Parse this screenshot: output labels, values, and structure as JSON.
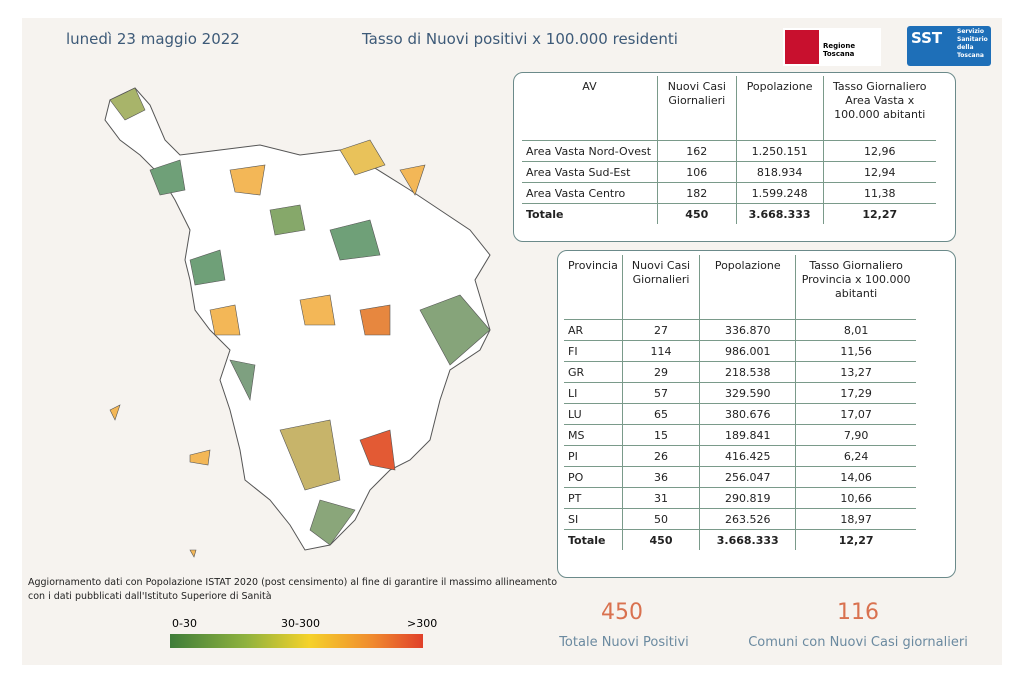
{
  "header": {
    "date": "lunedì 23 maggio 2022",
    "title": "Tasso di Nuovi positivi x 100.000 residenti"
  },
  "logos": {
    "regione": "Regione Toscana",
    "sst": "SST",
    "sst_name": [
      "Servizio",
      "Sanitario",
      "della",
      "Toscana"
    ]
  },
  "table_av": {
    "headers": [
      "AV",
      "Nuovi Casi Giornalieri",
      "Popolazione",
      "Tasso Giornaliero Area Vasta x 100.000 abitanti"
    ],
    "rows": [
      [
        "Area Vasta Nord-Ovest",
        "162",
        "1.250.151",
        "12,96"
      ],
      [
        "Area Vasta Sud-Est",
        "106",
        "818.934",
        "12,94"
      ],
      [
        "Area Vasta Centro",
        "182",
        "1.599.248",
        "11,38"
      ]
    ],
    "total": [
      "Totale",
      "450",
      "3.668.333",
      "12,27"
    ]
  },
  "table_prov": {
    "headers": [
      "Provincia",
      "Nuovi Casi Giornalieri",
      "Popolazione",
      "Tasso Giornaliero Provincia x 100.000 abitanti"
    ],
    "rows": [
      [
        "AR",
        "27",
        "336.870",
        "8,01"
      ],
      [
        "FI",
        "114",
        "986.001",
        "11,56"
      ],
      [
        "GR",
        "29",
        "218.538",
        "13,27"
      ],
      [
        "LI",
        "57",
        "329.590",
        "17,29"
      ],
      [
        "LU",
        "65",
        "380.676",
        "17,07"
      ],
      [
        "MS",
        "15",
        "189.841",
        "7,90"
      ],
      [
        "PI",
        "26",
        "416.425",
        "6,24"
      ],
      [
        "PO",
        "36",
        "256.047",
        "14,06"
      ],
      [
        "PT",
        "31",
        "290.819",
        "10,66"
      ],
      [
        "SI",
        "50",
        "263.526",
        "18,97"
      ]
    ],
    "total": [
      "Totale",
      "450",
      "3.668.333",
      "12,27"
    ]
  },
  "footnote": [
    "Aggiornamento dati con Popolazione ISTAT 2020 (post censimento) al fine di garantire il massimo allineamento",
    "con i dati pubblicati dall'Istituto Superiore di Sanità"
  ],
  "legend": [
    "0-30",
    "30-300",
    ">300"
  ],
  "kpis": [
    {
      "value": "450",
      "label": "Totale Nuovi Positivi"
    },
    {
      "value": "116",
      "label": "Comuni con Nuovi Casi giornalieri"
    }
  ]
}
